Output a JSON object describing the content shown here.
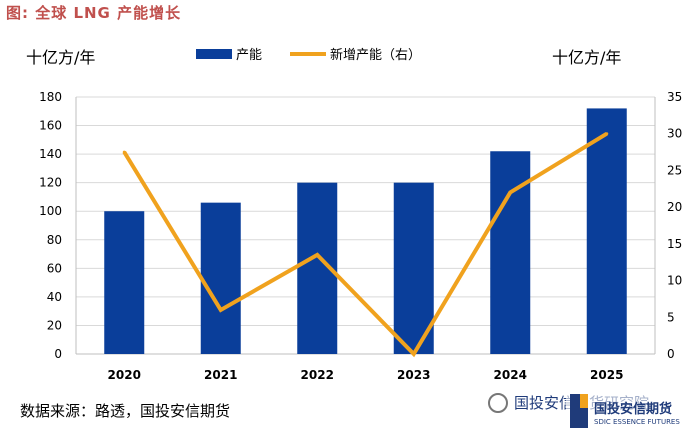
{
  "header": {
    "title": "图: 全球 LNG 产能增长"
  },
  "units": {
    "left": "十亿方/年",
    "right": "十亿方/年"
  },
  "legend": {
    "bar_label": "产能",
    "line_label": "新增产能（右）"
  },
  "footer": {
    "source": "数据来源：路透，国投安信期货",
    "watermark": "国投安信期货研究院",
    "logo_name": "国投安信期货",
    "logo_en": "SDIC ESSENCE FUTURES"
  },
  "colors": {
    "bar": "#0a3e9a",
    "line": "#f0a21e",
    "title": "#c0504d"
  },
  "chart_data": {
    "type": "bar",
    "categories": [
      "2020",
      "2021",
      "2022",
      "2023",
      "2024",
      "2025"
    ],
    "series": [
      {
        "name": "产能",
        "type": "bar",
        "axis": "left",
        "values": [
          100,
          106,
          120,
          120,
          142,
          172
        ]
      },
      {
        "name": "新增产能（右）",
        "type": "line",
        "axis": "right",
        "values": [
          27.5,
          6,
          13.5,
          0,
          22,
          30
        ]
      }
    ],
    "y_left": {
      "label": "十亿方/年",
      "min": 0,
      "max": 180,
      "step": 20
    },
    "y_right": {
      "label": "十亿方/年",
      "min": 0,
      "max": 35,
      "step": 5
    },
    "grid": true,
    "legend_position": "top-center"
  }
}
